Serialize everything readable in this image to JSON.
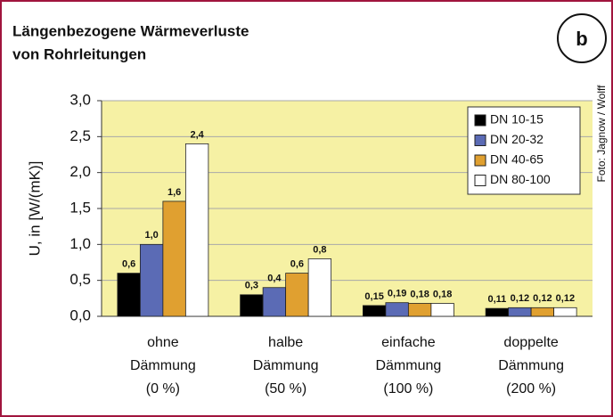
{
  "chart_data": {
    "type": "bar",
    "title": [
      "Längenbezogene Wärmeverluste",
      "von Rohrleitungen"
    ],
    "badge": "b",
    "credit": "Foto: Jagnow / Wolff",
    "y_label": "U, in [W/(mK)]",
    "categories": [
      [
        "ohne",
        "Dämmung",
        "(0 %)"
      ],
      [
        "halbe",
        "Dämmung",
        "(50 %)"
      ],
      [
        "einfache",
        "Dämmung",
        "(100 %)"
      ],
      [
        "doppelte",
        "Dämmung",
        "(200 %)"
      ]
    ],
    "series": [
      {
        "name": "DN 10-15",
        "color": "#000000",
        "values": [
          0.6,
          0.3,
          0.15,
          0.11
        ],
        "value_labels": [
          "0,6",
          "0,3",
          "0,15",
          "0,11"
        ]
      },
      {
        "name": "DN 20-32",
        "color": "#5b6bb5",
        "values": [
          1.0,
          0.4,
          0.19,
          0.12
        ],
        "value_labels": [
          "1,0",
          "0,4",
          "0,19",
          "0,12"
        ]
      },
      {
        "name": "DN 40-65",
        "color": "#e0a030",
        "values": [
          1.6,
          0.6,
          0.18,
          0.12
        ],
        "value_labels": [
          "1,6",
          "0,6",
          "0,18",
          "0,12"
        ]
      },
      {
        "name": "DN 80-100",
        "color": "#ffffff",
        "values": [
          2.4,
          0.8,
          0.18,
          0.12
        ],
        "value_labels": [
          "2,4",
          "0,8",
          "0,18",
          "0,12"
        ]
      }
    ],
    "ylim": [
      0,
      3
    ],
    "yticks": [
      {
        "value": 0,
        "label": "0,0"
      },
      {
        "value": 0.5,
        "label": "0,5"
      },
      {
        "value": 1,
        "label": "1,0"
      },
      {
        "value": 1.5,
        "label": "1,5"
      },
      {
        "value": 2,
        "label": "2,0"
      },
      {
        "value": 2.5,
        "label": "2,5"
      },
      {
        "value": 3,
        "label": "3,0"
      }
    ],
    "grid": true,
    "legend": "top-right",
    "plot_color": "#f6f1a4"
  }
}
